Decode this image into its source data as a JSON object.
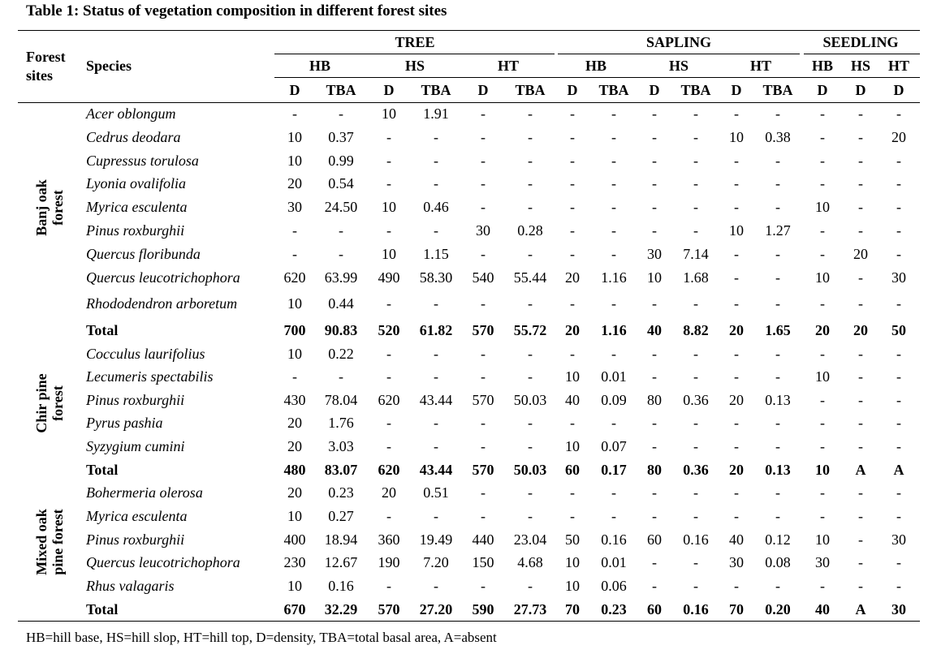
{
  "caption": "Table 1: Status of vegetation composition in different forest sites",
  "header": {
    "forest_sites": [
      "Forest",
      "sites"
    ],
    "species": "Species",
    "groups": [
      "TREE",
      "SAPLING",
      "SEEDLING"
    ],
    "positions": [
      "HB",
      "HS",
      "HT",
      "HB",
      "HS",
      "HT",
      "HB",
      "HS",
      "HT"
    ],
    "metrics": [
      "D",
      "TBA",
      "D",
      "TBA",
      "D",
      "TBA",
      "D",
      "TBA",
      "D",
      "TBA",
      "D",
      "TBA",
      "D",
      "D",
      "D"
    ]
  },
  "sections": [
    {
      "site": [
        "Banj oak",
        "forest"
      ],
      "rows": [
        {
          "species": "Acer oblongum",
          "values": [
            "-",
            "-",
            "10",
            "1.91",
            "-",
            "-",
            "-",
            "-",
            "-",
            "-",
            "-",
            "-",
            "-",
            "-",
            "-"
          ]
        },
        {
          "species": "Cedrus deodara",
          "values": [
            "10",
            "0.37",
            "-",
            "-",
            "-",
            "-",
            "-",
            "-",
            "-",
            "-",
            "10",
            "0.38",
            "-",
            "-",
            "20"
          ]
        },
        {
          "species": "Cupressus torulosa",
          "values": [
            "10",
            "0.99",
            "-",
            "-",
            "-",
            "-",
            "-",
            "-",
            "-",
            "-",
            "-",
            "-",
            "-",
            "-",
            "-"
          ]
        },
        {
          "species": "Lyonia ovalifolia",
          "values": [
            "20",
            "0.54",
            "-",
            "-",
            "-",
            "-",
            "-",
            "-",
            "-",
            "-",
            "-",
            "-",
            "-",
            "-",
            "-"
          ]
        },
        {
          "species": "Myrica esculenta",
          "values": [
            "30",
            "24.50",
            "10",
            "0.46",
            "-",
            "-",
            "-",
            "-",
            "-",
            "-",
            "-",
            "-",
            "10",
            "-",
            "-"
          ]
        },
        {
          "species": "Pinus roxburghii",
          "values": [
            "-",
            "-",
            "-",
            "-",
            "30",
            "0.28",
            "-",
            "-",
            "-",
            "-",
            "10",
            "1.27",
            "-",
            "-",
            "-"
          ]
        },
        {
          "species": "Quercus floribunda",
          "values": [
            "-",
            "-",
            "10",
            "1.15",
            "-",
            "-",
            "-",
            "-",
            "30",
            "7.14",
            "-",
            "-",
            "-",
            "20",
            "-"
          ]
        },
        {
          "species": "Quercus leucotrichophora",
          "values": [
            "620",
            "63.99",
            "490",
            "58.30",
            "540",
            "55.44",
            "20",
            "1.16",
            "10",
            "1.68",
            "-",
            "-",
            "10",
            "-",
            "30"
          ]
        },
        {
          "species": "Rhododendron  arboretum",
          "values": [
            "10",
            "0.44",
            "-",
            "-",
            "-",
            "-",
            "-",
            "-",
            "-",
            "-",
            "-",
            "-",
            "-",
            "-",
            "-"
          ]
        }
      ],
      "total": {
        "label": "Total",
        "values": [
          "700",
          "90.83",
          "520",
          "61.82",
          "570",
          "55.72",
          "20",
          "1.16",
          "40",
          "8.82",
          "20",
          "1.65",
          "20",
          "20",
          "50"
        ]
      }
    },
    {
      "site": [
        "Chir pine",
        "forest"
      ],
      "rows": [
        {
          "species": "Cocculus laurifolius",
          "values": [
            "10",
            "0.22",
            "-",
            "-",
            "-",
            "-",
            "-",
            "-",
            "-",
            "-",
            "-",
            "-",
            "-",
            "-",
            "-"
          ]
        },
        {
          "species": "Lecumeris spectabilis",
          "values": [
            "-",
            "-",
            "-",
            "-",
            "-",
            "-",
            "10",
            "0.01",
            "-",
            "-",
            "-",
            "-",
            "10",
            "-",
            "-"
          ]
        },
        {
          "species": "Pinus roxburghii",
          "values": [
            "430",
            "78.04",
            "620",
            "43.44",
            "570",
            "50.03",
            "40",
            "0.09",
            "80",
            "0.36",
            "20",
            "0.13",
            "-",
            "-",
            "-"
          ]
        },
        {
          "species": "Pyrus pashia",
          "values": [
            "20",
            "1.76",
            "-",
            "-",
            "-",
            "-",
            "-",
            "-",
            "-",
            "-",
            "-",
            "-",
            "-",
            "-",
            "-"
          ]
        },
        {
          "species": "Syzygium cumini",
          "values": [
            "20",
            "3.03",
            "-",
            "-",
            "-",
            "-",
            "10",
            "0.07",
            "-",
            "-",
            "-",
            "-",
            "-",
            "-",
            "-"
          ]
        }
      ],
      "total": {
        "label": "Total",
        "values": [
          "480",
          "83.07",
          "620",
          "43.44",
          "570",
          "50.03",
          "60",
          "0.17",
          "80",
          "0.36",
          "20",
          "0.13",
          "10",
          "A",
          "A"
        ]
      }
    },
    {
      "site": [
        "Mixed oak",
        "pine forest"
      ],
      "rows": [
        {
          "species": "Bohermeria olerosa",
          "values": [
            "20",
            "0.23",
            "20",
            "0.51",
            "-",
            "-",
            "-",
            "-",
            "-",
            "-",
            "-",
            "-",
            "-",
            "-",
            "-"
          ]
        },
        {
          "species": "Myrica esculenta",
          "values": [
            "10",
            "0.27",
            "-",
            "-",
            "-",
            "-",
            "-",
            "-",
            "-",
            "-",
            "-",
            "-",
            "-",
            "-",
            "-"
          ]
        },
        {
          "species": "Pinus roxburghii",
          "values": [
            "400",
            "18.94",
            "360",
            "19.49",
            "440",
            "23.04",
            "50",
            "0.16",
            "60",
            "0.16",
            "40",
            "0.12",
            "10",
            "-",
            "30"
          ]
        },
        {
          "species": "Quercus leucotrichophora",
          "values": [
            "230",
            "12.67",
            "190",
            "7.20",
            "150",
            "4.68",
            "10",
            "0.01",
            "-",
            "-",
            "30",
            "0.08",
            "30",
            "-",
            "-"
          ]
        },
        {
          "species": "Rhus valagaris",
          "values": [
            "10",
            "0.16",
            "-",
            "-",
            "-",
            "-",
            "10",
            "0.06",
            "-",
            "-",
            "-",
            "-",
            "-",
            "-",
            "-"
          ]
        }
      ],
      "total": {
        "label": "Total",
        "values": [
          "670",
          "32.29",
          "570",
          "27.20",
          "590",
          "27.73",
          "70",
          "0.23",
          "60",
          "0.16",
          "70",
          "0.20",
          "40",
          "A",
          "30"
        ]
      }
    }
  ],
  "footnote": "HB=hill base, HS=hill slop, HT=hill top, D=density, TBA=total basal area, A=absent"
}
